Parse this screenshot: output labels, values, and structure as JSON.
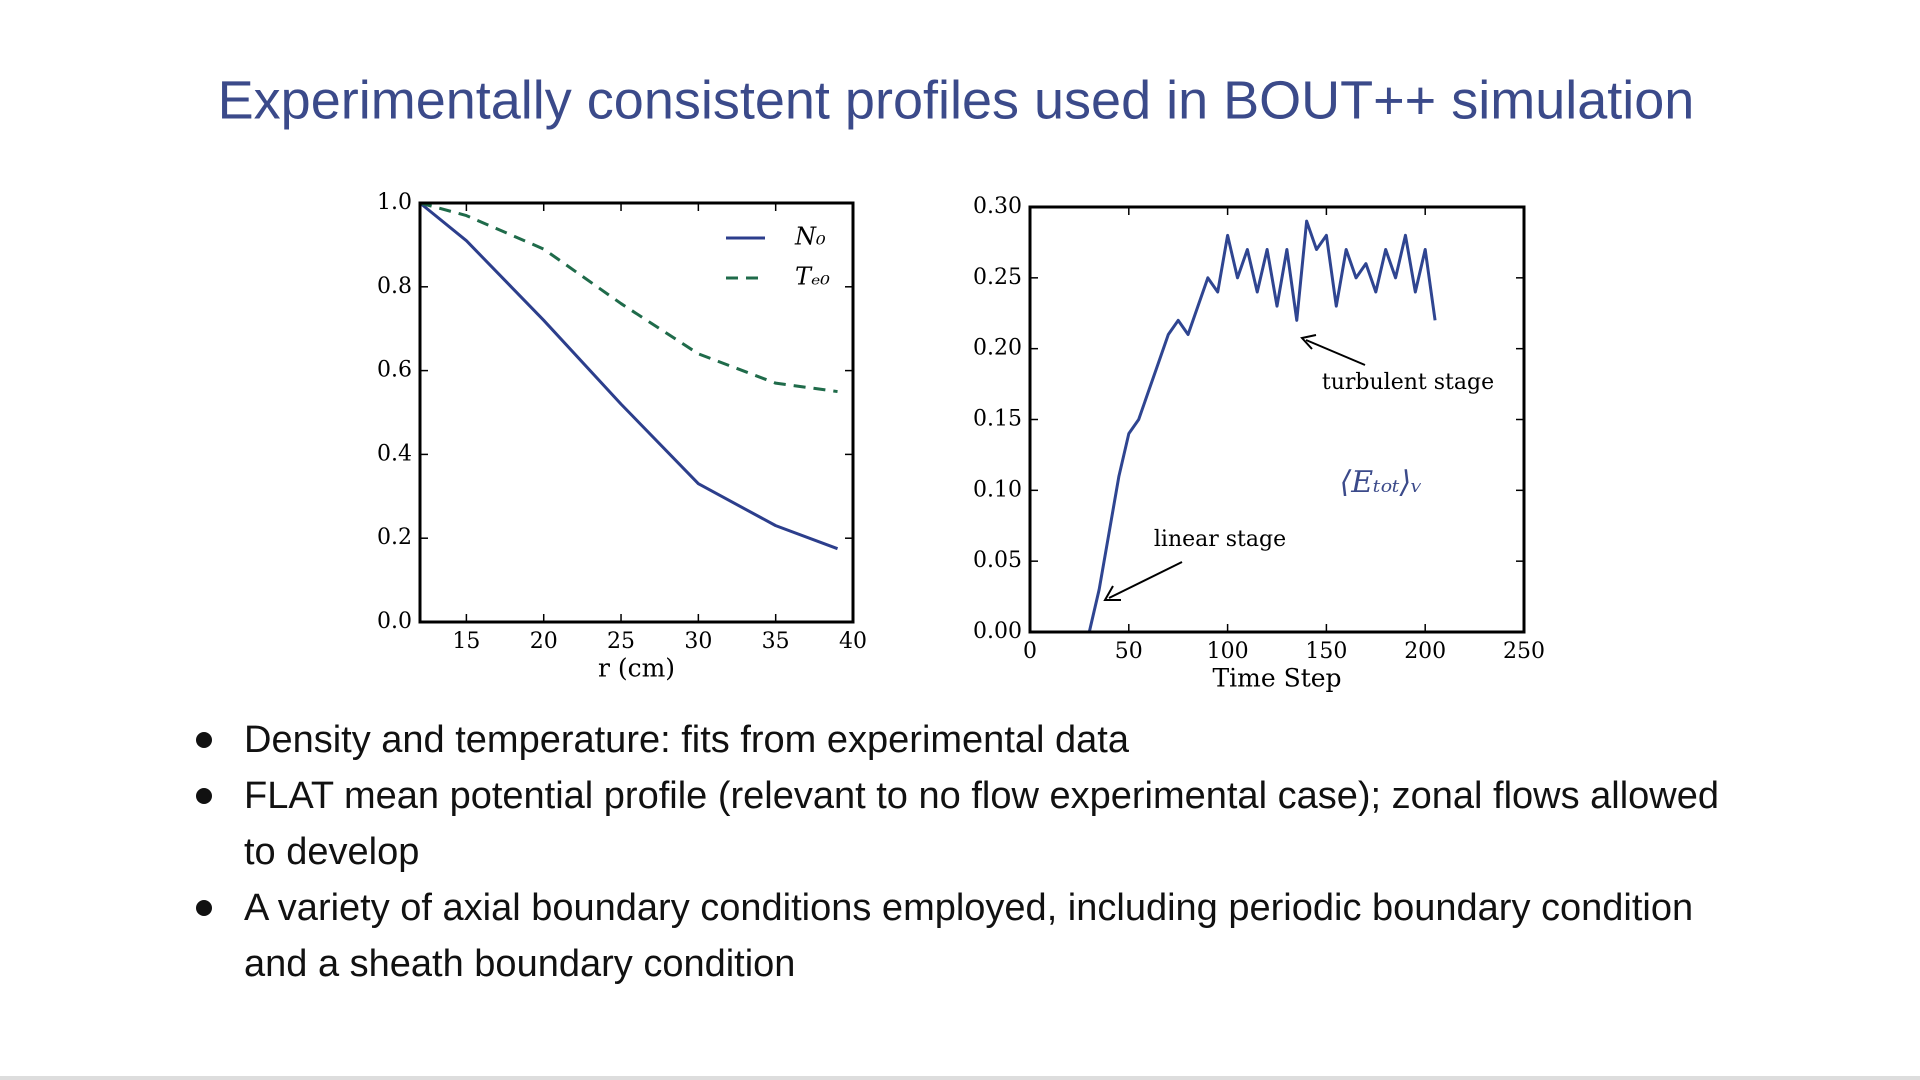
{
  "slide_title": "Experimentally consistent profiles used in BOUT++ simulation",
  "bullets": [
    "Density and temperature: fits from experimental data",
    "FLAT mean potential profile (relevant to no flow experimental case); zonal flows allowed to develop",
    "A variety of axial boundary conditions employed, including periodic boundary condition and a sheath boundary condition"
  ],
  "chart_data": [
    {
      "type": "line",
      "xlabel": "r (cm)",
      "x": [
        12,
        15,
        20,
        25,
        30,
        35,
        39
      ],
      "series": [
        {
          "name": "N₀",
          "color": "#2c3e8c",
          "dash": false,
          "values": [
            1.0,
            0.91,
            0.72,
            0.52,
            0.33,
            0.23,
            0.175
          ]
        },
        {
          "name": "Tₑ₀",
          "color": "#1f6b4a",
          "dash": true,
          "values": [
            1.0,
            0.97,
            0.89,
            0.76,
            0.64,
            0.57,
            0.55
          ]
        }
      ],
      "xlim": [
        12,
        40
      ],
      "xticks": [
        15,
        20,
        25,
        30,
        35,
        40
      ],
      "ylim": [
        0,
        1
      ],
      "yticks": [
        {
          "value": 0,
          "label": "0.0"
        },
        {
          "value": 0.2,
          "label": "0.2"
        },
        {
          "value": 0.4,
          "label": "0.4"
        },
        {
          "value": 0.6,
          "label": "0.6"
        },
        {
          "value": 0.8,
          "label": "0.8"
        },
        {
          "value": 1,
          "label": "1.0"
        }
      ],
      "legend": "upper right",
      "grid": false
    },
    {
      "type": "line",
      "xlabel": "Time Step",
      "x": [
        30,
        35,
        40,
        45,
        50,
        55,
        60,
        65,
        70,
        75,
        80,
        85,
        90,
        95,
        100,
        105,
        110,
        115,
        120,
        125,
        130,
        135,
        140,
        145,
        150,
        155,
        160,
        165,
        170,
        175,
        180,
        185,
        190,
        195,
        200,
        205
      ],
      "series": [
        {
          "color": "#2f4591",
          "dash": false,
          "values": [
            0.0,
            0.03,
            0.07,
            0.11,
            0.14,
            0.15,
            0.17,
            0.19,
            0.21,
            0.22,
            0.21,
            0.23,
            0.25,
            0.24,
            0.28,
            0.25,
            0.27,
            0.24,
            0.27,
            0.23,
            0.27,
            0.22,
            0.29,
            0.27,
            0.28,
            0.23,
            0.27,
            0.25,
            0.26,
            0.24,
            0.27,
            0.25,
            0.28,
            0.24,
            0.27,
            0.22
          ]
        }
      ],
      "xlim": [
        0,
        250
      ],
      "xticks": [
        0,
        50,
        100,
        150,
        200,
        250
      ],
      "ylim": [
        0,
        0.3
      ],
      "yticks": [
        {
          "value": 0,
          "label": "0.00"
        },
        {
          "value": 0.05,
          "label": "0.05"
        },
        {
          "value": 0.1,
          "label": "0.10"
        },
        {
          "value": 0.15,
          "label": "0.15"
        },
        {
          "value": 0.2,
          "label": "0.20"
        },
        {
          "value": 0.25,
          "label": "0.25"
        },
        {
          "value": 0.3,
          "label": "0.30"
        }
      ],
      "annotations": [
        "turbulent stage",
        "linear stage",
        "⟨Eₜₒₜ⟩ᵥ"
      ],
      "grid": false
    }
  ]
}
